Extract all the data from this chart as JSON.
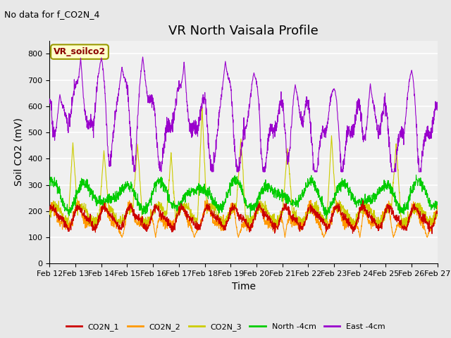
{
  "title": "VR North Vaisala Profile",
  "xlabel": "Time",
  "ylabel": "Soil CO2 (mV)",
  "note": "No data for f_CO2N_4",
  "sensor_label": "VR_soilco2",
  "ylim": [
    0,
    850
  ],
  "yticks": [
    0,
    100,
    200,
    300,
    400,
    500,
    600,
    700,
    800
  ],
  "xtick_labels": [
    "Feb 12",
    "Feb 13",
    "Feb 14",
    "Feb 15",
    "Feb 16",
    "Feb 17",
    "Feb 18",
    "Feb 19",
    "Feb 20",
    "Feb 21",
    "Feb 22",
    "Feb 23",
    "Feb 24",
    "Feb 25",
    "Feb 26",
    "Feb 27"
  ],
  "colors": {
    "CO2N_1": "#cc0000",
    "CO2N_2": "#ff9900",
    "CO2N_3": "#cccc00",
    "North_4cm": "#00cc00",
    "East_4cm": "#9900cc"
  },
  "legend_labels": [
    "CO2N_1",
    "CO2N_2",
    "CO2N_3",
    "North -4cm",
    "East -4cm"
  ],
  "background_color": "#e8e8e8",
  "axes_bg_color": "#f0f0f0",
  "grid_color": "#ffffff",
  "title_fontsize": 13,
  "label_fontsize": 10,
  "tick_fontsize": 8,
  "note_fontsize": 9,
  "sensor_fontsize": 9
}
